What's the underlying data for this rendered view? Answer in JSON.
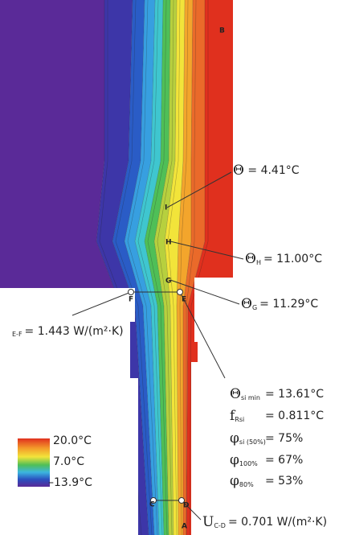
{
  "points": [
    "B",
    "I",
    "H",
    "G",
    "F",
    "E",
    "C",
    "D",
    "A"
  ],
  "annotations": [
    {
      "symbol": "Θ",
      "value": "= 4.41°C"
    },
    {
      "symbol": "Θ",
      "sub": "H",
      "value": "= 11.00°C"
    },
    {
      "symbol": "Θ",
      "sub": "G",
      "value": "= 11.29°C"
    },
    {
      "sub": "E-F",
      "value": "= 1.443 W/(m²·K)"
    },
    {
      "symbol": "Θ",
      "sub": "si min",
      "value": "= 13.61°C"
    },
    {
      "symbol": "f",
      "sub": "Rsi",
      "value": "= 0.811°C"
    },
    {
      "symbol": "φ",
      "sub": "si (50%)",
      "value": "= 75%"
    },
    {
      "symbol": "φ",
      "sub": "100%",
      "value": "= 67%"
    },
    {
      "symbol": "φ",
      "sub": "80%",
      "value": "= 53%"
    },
    {
      "symbol": "U",
      "sub": "C-D",
      "value": "= 0.701 W/(m²·K)"
    }
  ],
  "legend": [
    "20.0°C",
    "7.0°C",
    "–13.9°C"
  ]
}
